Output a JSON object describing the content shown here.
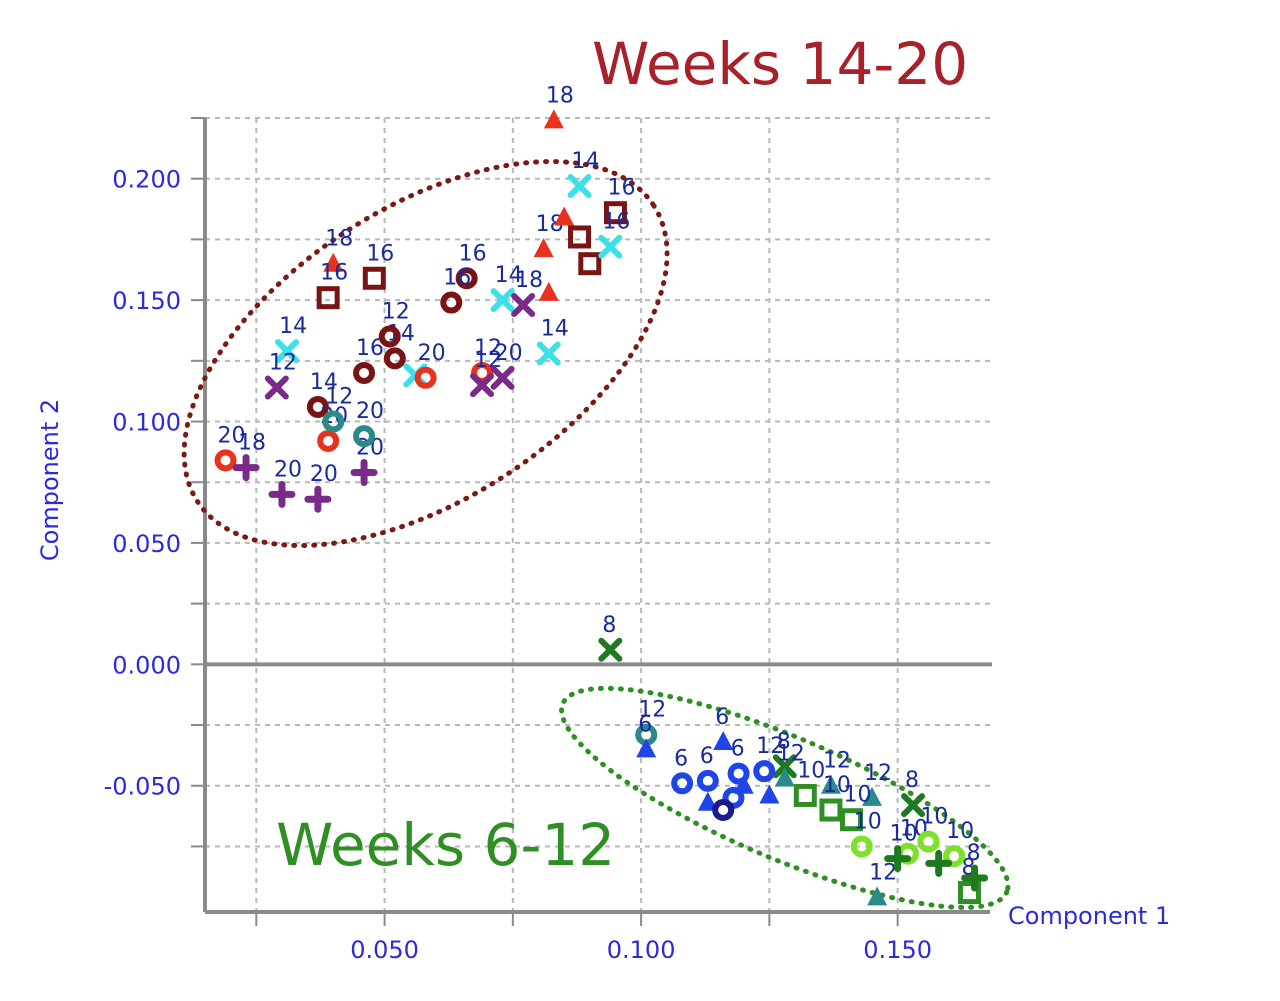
{
  "chart_data": {
    "type": "scatter",
    "xlabel": "Component 1",
    "ylabel": "Component 2",
    "x_ticks": [
      0.05,
      0.1,
      0.15
    ],
    "x_tick_labels": [
      "0.050",
      "0.100",
      "0.150"
    ],
    "y_ticks": [
      0.2,
      0.15,
      0.1,
      0.05,
      0.0,
      -0.05
    ],
    "y_tick_labels": [
      "0.200",
      "0.150",
      "0.100",
      "0.050",
      "0.000",
      "-0.050"
    ],
    "xlim": [
      0.015,
      0.168
    ],
    "ylim": [
      -0.102,
      0.225
    ],
    "grid": true,
    "annotations": [
      {
        "text": "Weeks 14-20",
        "color": "#a8202a",
        "group": "late"
      },
      {
        "text": "Weeks 6-12",
        "color": "#2f8f25",
        "group": "early"
      }
    ],
    "ellipses": [
      {
        "group": "late",
        "color": "#7a1a14",
        "cx": 0.058,
        "cy": 0.128,
        "rx": 0.053,
        "ry": 0.06,
        "angle_deg": -33
      },
      {
        "group": "early",
        "color": "#2f8f25",
        "cx": 0.128,
        "cy": -0.055,
        "rx": 0.047,
        "ry": 0.025,
        "angle_deg": 23
      }
    ],
    "series": [
      {
        "color": "#e8321e",
        "marker": "triangle",
        "points": [
          {
            "x": 0.083,
            "y": 0.224,
            "label": "18"
          },
          {
            "x": 0.04,
            "y": 0.165,
            "label": "18"
          },
          {
            "x": 0.081,
            "y": 0.171,
            "label": "18"
          },
          {
            "x": 0.082,
            "y": 0.153,
            "label": ""
          },
          {
            "x": 0.085,
            "y": 0.184,
            "label": ""
          }
        ]
      },
      {
        "color": "#7a1414",
        "marker": "square",
        "points": [
          {
            "x": 0.048,
            "y": 0.159,
            "label": "16"
          },
          {
            "x": 0.039,
            "y": 0.151,
            "label": "16"
          },
          {
            "x": 0.095,
            "y": 0.186,
            "label": "16"
          },
          {
            "x": 0.088,
            "y": 0.176,
            "label": ""
          },
          {
            "x": 0.09,
            "y": 0.165,
            "label": ""
          }
        ]
      },
      {
        "color": "#3ee0e8",
        "marker": "x",
        "points": [
          {
            "x": 0.088,
            "y": 0.197,
            "label": "14"
          },
          {
            "x": 0.094,
            "y": 0.172,
            "label": "16"
          },
          {
            "x": 0.082,
            "y": 0.128,
            "label": "14"
          },
          {
            "x": 0.073,
            "y": 0.15,
            "label": "14"
          },
          {
            "x": 0.031,
            "y": 0.129,
            "label": "14"
          },
          {
            "x": 0.056,
            "y": 0.119,
            "label": ""
          }
        ]
      },
      {
        "color": "#7a1414",
        "marker": "circle",
        "points": [
          {
            "x": 0.066,
            "y": 0.159,
            "label": "16"
          },
          {
            "x": 0.063,
            "y": 0.149,
            "label": "16"
          },
          {
            "x": 0.052,
            "y": 0.126,
            "label": "14"
          },
          {
            "x": 0.046,
            "y": 0.12,
            "label": "16"
          },
          {
            "x": 0.037,
            "y": 0.106,
            "label": "14"
          },
          {
            "x": 0.051,
            "y": 0.135,
            "label": "12"
          }
        ]
      },
      {
        "color": "#e8321e",
        "marker": "circle",
        "points": [
          {
            "x": 0.019,
            "y": 0.084,
            "label": "20"
          },
          {
            "x": 0.058,
            "y": 0.118,
            "label": "20"
          },
          {
            "x": 0.069,
            "y": 0.12,
            "label": "12"
          },
          {
            "x": 0.039,
            "y": 0.092,
            "label": "20"
          }
        ]
      },
      {
        "color": "#7a2a88",
        "marker": "x",
        "points": [
          {
            "x": 0.029,
            "y": 0.114,
            "label": "12"
          },
          {
            "x": 0.069,
            "y": 0.115,
            "label": "12"
          },
          {
            "x": 0.073,
            "y": 0.118,
            "label": "20"
          },
          {
            "x": 0.077,
            "y": 0.148,
            "label": "18"
          }
        ]
      },
      {
        "color": "#7a2a88",
        "marker": "plus",
        "points": [
          {
            "x": 0.023,
            "y": 0.081,
            "label": "18"
          },
          {
            "x": 0.03,
            "y": 0.07,
            "label": "20"
          },
          {
            "x": 0.037,
            "y": 0.068,
            "label": "20"
          },
          {
            "x": 0.046,
            "y": 0.079,
            "label": "20"
          }
        ]
      },
      {
        "color": "#2a8a8a",
        "marker": "circle",
        "points": [
          {
            "x": 0.046,
            "y": 0.094,
            "label": "20"
          },
          {
            "x": 0.04,
            "y": 0.1,
            "label": "12"
          },
          {
            "x": 0.101,
            "y": -0.029,
            "label": "12"
          }
        ]
      },
      {
        "color": "#1f7a1f",
        "marker": "x",
        "points": [
          {
            "x": 0.094,
            "y": 0.006,
            "label": "8"
          },
          {
            "x": 0.128,
            "y": -0.042,
            "label": "8"
          },
          {
            "x": 0.153,
            "y": -0.058,
            "label": "8"
          }
        ]
      },
      {
        "color": "#1f44e8",
        "marker": "triangle",
        "points": [
          {
            "x": 0.101,
            "y": -0.035,
            "label": "6"
          },
          {
            "x": 0.113,
            "y": -0.057,
            "label": ""
          },
          {
            "x": 0.116,
            "y": -0.032,
            "label": "6"
          },
          {
            "x": 0.125,
            "y": -0.054,
            "label": ""
          },
          {
            "x": 0.12,
            "y": -0.05,
            "label": ""
          }
        ]
      },
      {
        "color": "#1f44e8",
        "marker": "circle",
        "points": [
          {
            "x": 0.108,
            "y": -0.049,
            "label": "6"
          },
          {
            "x": 0.113,
            "y": -0.048,
            "label": "6"
          },
          {
            "x": 0.119,
            "y": -0.045,
            "label": "6"
          },
          {
            "x": 0.118,
            "y": -0.055,
            "label": ""
          },
          {
            "x": 0.124,
            "y": -0.044,
            "label": "12"
          }
        ]
      },
      {
        "color": "#1a1a8c",
        "marker": "circle",
        "points": [
          {
            "x": 0.116,
            "y": -0.06,
            "label": ""
          }
        ]
      },
      {
        "color": "#2a8a8a",
        "marker": "triangle",
        "points": [
          {
            "x": 0.128,
            "y": -0.047,
            "label": "12"
          },
          {
            "x": 0.137,
            "y": -0.05,
            "label": "12"
          },
          {
            "x": 0.145,
            "y": -0.055,
            "label": "12"
          },
          {
            "x": 0.146,
            "y": -0.096,
            "label": "12"
          }
        ]
      },
      {
        "color": "#2f8f25",
        "marker": "square",
        "points": [
          {
            "x": 0.132,
            "y": -0.054,
            "label": "10"
          },
          {
            "x": 0.137,
            "y": -0.06,
            "label": "10"
          },
          {
            "x": 0.141,
            "y": -0.064,
            "label": "10"
          },
          {
            "x": 0.164,
            "y": -0.094,
            "label": "8"
          }
        ]
      },
      {
        "color": "#7de02a",
        "marker": "circle",
        "points": [
          {
            "x": 0.143,
            "y": -0.075,
            "label": "10"
          },
          {
            "x": 0.152,
            "y": -0.078,
            "label": "10"
          },
          {
            "x": 0.156,
            "y": -0.073,
            "label": "10"
          },
          {
            "x": 0.161,
            "y": -0.079,
            "label": "10"
          }
        ]
      },
      {
        "color": "#1f7a1f",
        "marker": "plus",
        "points": [
          {
            "x": 0.15,
            "y": -0.08,
            "label": "10"
          },
          {
            "x": 0.158,
            "y": -0.082,
            "label": ""
          },
          {
            "x": 0.165,
            "y": -0.088,
            "label": "8"
          }
        ]
      }
    ]
  }
}
